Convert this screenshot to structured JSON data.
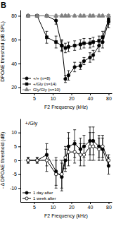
{
  "chart_data": [
    {
      "type": "line",
      "title": "B",
      "x_label": "F2 Frequency (kHz)",
      "y_label": "DPOAE threshold (dB SPL)",
      "log": "x",
      "xlim": [
        3,
        90
      ],
      "xticks": [
        5,
        10,
        20,
        40,
        80
      ],
      "ylim": [
        15,
        85
      ],
      "yticks": [
        20,
        40,
        60,
        80
      ],
      "legend": "lower left",
      "x": [
        4,
        5.6,
        8,
        11.3,
        14,
        16,
        18,
        22.6,
        28,
        32,
        40,
        45,
        56,
        64,
        80
      ],
      "series": [
        {
          "name": "+/+ (n=8)",
          "color": "black",
          "marker": "circle",
          "values": [
            80,
            80,
            80,
            76,
            55,
            27,
            30,
            37,
            38,
            42,
            45,
            47,
            55,
            58,
            75
          ],
          "errors": [
            1,
            1,
            1,
            3,
            5,
            3,
            4,
            4,
            3,
            3,
            4,
            4,
            5,
            5,
            5
          ]
        },
        {
          "name": "+/Gly (n=14)",
          "color": "black",
          "marker": "square",
          "values": [
            80,
            80,
            62,
            58,
            55,
            53,
            54,
            55,
            56,
            57,
            57,
            58,
            59,
            62,
            77
          ],
          "errors": [
            1,
            1,
            5,
            5,
            4,
            4,
            4,
            4,
            4,
            4,
            4,
            4,
            4,
            5,
            4
          ]
        },
        {
          "name": "Gly/Gly (n=10)",
          "color": "gray",
          "marker": "triangle",
          "values": [
            80,
            80,
            80,
            80,
            80,
            80,
            80,
            80,
            80,
            80,
            80,
            80,
            80,
            80,
            80
          ],
          "errors": [
            1,
            1,
            1,
            1,
            1,
            1,
            1,
            1,
            1,
            1,
            1,
            1,
            1,
            1,
            1
          ]
        }
      ]
    },
    {
      "type": "line",
      "title": "+/Gly",
      "x_label": "F2 Frequency (kHz)",
      "y_label": "- Δ DPOAE threshold (dB)",
      "log": "x",
      "xlim": [
        3,
        90
      ],
      "xticks": [
        5,
        10,
        20,
        40,
        80
      ],
      "ylim": [
        -15,
        15
      ],
      "yticks": [
        -10,
        -5,
        0,
        5,
        10
      ],
      "legend": "lower left",
      "reference_line": 0,
      "x": [
        4,
        5.6,
        8,
        11.3,
        14,
        16,
        18,
        22.6,
        28,
        32,
        40,
        45,
        56,
        64,
        80
      ],
      "series": [
        {
          "name": "1 day after",
          "color": "black",
          "marker": "circle",
          "values": [
            0,
            0,
            2,
            -4,
            -6,
            0,
            5,
            6,
            4,
            5,
            7,
            7,
            5,
            4,
            -2
          ],
          "errors": [
            1,
            1,
            4,
            5,
            5,
            4,
            5,
            5,
            4,
            4,
            5,
            5,
            4,
            4,
            3
          ]
        },
        {
          "name": "1 week after",
          "color": "black",
          "marker": "open-circle",
          "values": [
            0,
            0,
            0,
            -5,
            -5,
            1,
            3,
            3,
            2,
            2,
            5,
            5,
            4,
            5,
            0
          ],
          "errors": [
            1,
            1,
            4,
            5,
            5,
            4,
            5,
            4,
            4,
            4,
            5,
            5,
            4,
            4,
            2
          ]
        }
      ]
    }
  ]
}
